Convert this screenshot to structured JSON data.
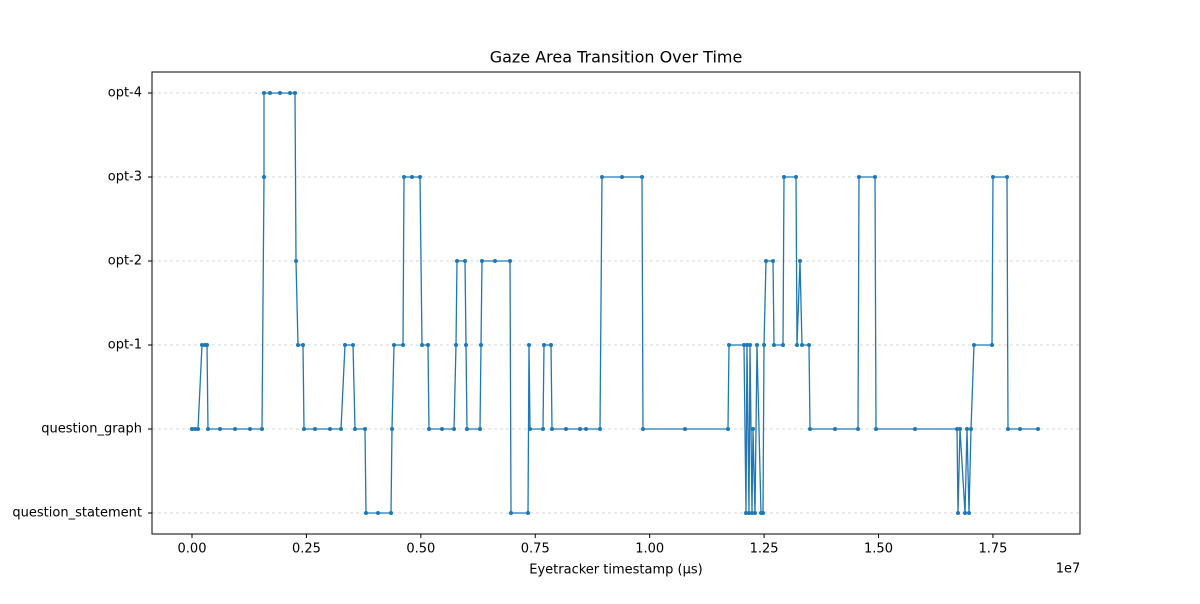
{
  "chart_data": {
    "type": "line",
    "title": "Gaze Area Transition Over Time",
    "x_label": "Eyetracker timestamp (µs)",
    "x_offset_label": "1e7",
    "color": "#1f77b4",
    "grid": true,
    "xlim": [
      -874000,
      19402800
    ],
    "ylim": [
      -0.25,
      5.25
    ],
    "xticks": [
      {
        "value": 0,
        "label": "0.00"
      },
      {
        "value": 2500000,
        "label": "0.25"
      },
      {
        "value": 5000000,
        "label": "0.50"
      },
      {
        "value": 7500000,
        "label": "0.75"
      },
      {
        "value": 10000000,
        "label": "1.00"
      },
      {
        "value": 12500000,
        "label": "1.25"
      },
      {
        "value": 15000000,
        "label": "1.50"
      },
      {
        "value": 17500000,
        "label": "1.75"
      }
    ],
    "yticks": [
      {
        "value": 0,
        "label": "question_statement"
      },
      {
        "value": 1,
        "label": "question_graph"
      },
      {
        "value": 2,
        "label": "opt-1"
      },
      {
        "value": 3,
        "label": "opt-2"
      },
      {
        "value": 4,
        "label": "opt-3"
      },
      {
        "value": 5,
        "label": "opt-4"
      }
    ],
    "x": [
      0,
      65550,
      131100,
      218500,
      284050,
      327750,
      349600,
      611800,
      939550,
      1267300,
      1529500,
      1573200,
      1573200,
      1704300,
      1922800,
      2141300,
      2250550,
      2272400,
      2316100,
      2425350,
      2447200,
      2687550,
      3015300,
      3255650,
      3343050,
      3517850,
      3561550,
      3780050,
      3801900,
      4064100,
      4348150,
      4370000,
      4413700,
      4610350,
      4632200,
      4807000,
      4981800,
      5025500,
      5156600,
      5178450,
      5462500,
      5724700,
      5768400,
      5790250,
      5965050,
      5986900,
      6008750,
      6292800,
      6314650,
      6336500,
      6620550,
      6948300,
      6970150,
      7341600,
      7363450,
      7385300,
      7669350,
      7691200,
      7844150,
      7866000,
      8171900,
      8477800,
      8608900,
      8914800,
      8958500,
      9395500,
      9832500,
      9854350,
      10772050,
      11711600,
      11733450,
      12061200,
      12104900,
      12126750,
      12170450,
      12192300,
      12236000,
      12257850,
      12301550,
      12345250,
      12432650,
      12476350,
      12498200,
      12541900,
      12694850,
      12716700,
      12913350,
      12935200,
      13197400,
      13219250,
      13284800,
      13328500,
      13481450,
      13503300,
      14049550,
      14552100,
      14573950,
      14923550,
      14945400,
      15797550,
      16715250,
      16737100,
      16780800,
      16890050,
      16933750,
      16977450,
      17021150,
      17086700,
      17480000,
      17501850,
      17807750,
      17829600,
      18091800,
      18485100
    ],
    "values": [
      1,
      1,
      1,
      2,
      2,
      2,
      1,
      1,
      1,
      1,
      1,
      4,
      5,
      5,
      5,
      5,
      5,
      3,
      2,
      2,
      1,
      1,
      1,
      1,
      2,
      2,
      1,
      1,
      0,
      0,
      0,
      1,
      2,
      2,
      4,
      4,
      4,
      2,
      2,
      1,
      1,
      1,
      2,
      3,
      3,
      2,
      1,
      1,
      2,
      3,
      3,
      3,
      0,
      0,
      2,
      1,
      1,
      2,
      2,
      1,
      1,
      1,
      1,
      1,
      4,
      4,
      4,
      1,
      1,
      1,
      2,
      2,
      0,
      2,
      0,
      2,
      0,
      1,
      0,
      2,
      0,
      0,
      2,
      3,
      3,
      2,
      2,
      4,
      4,
      2,
      3,
      2,
      2,
      1,
      1,
      1,
      4,
      4,
      1,
      1,
      1,
      0,
      1,
      0,
      1,
      0,
      1,
      2,
      2,
      4,
      4,
      1,
      1,
      1
    ]
  }
}
